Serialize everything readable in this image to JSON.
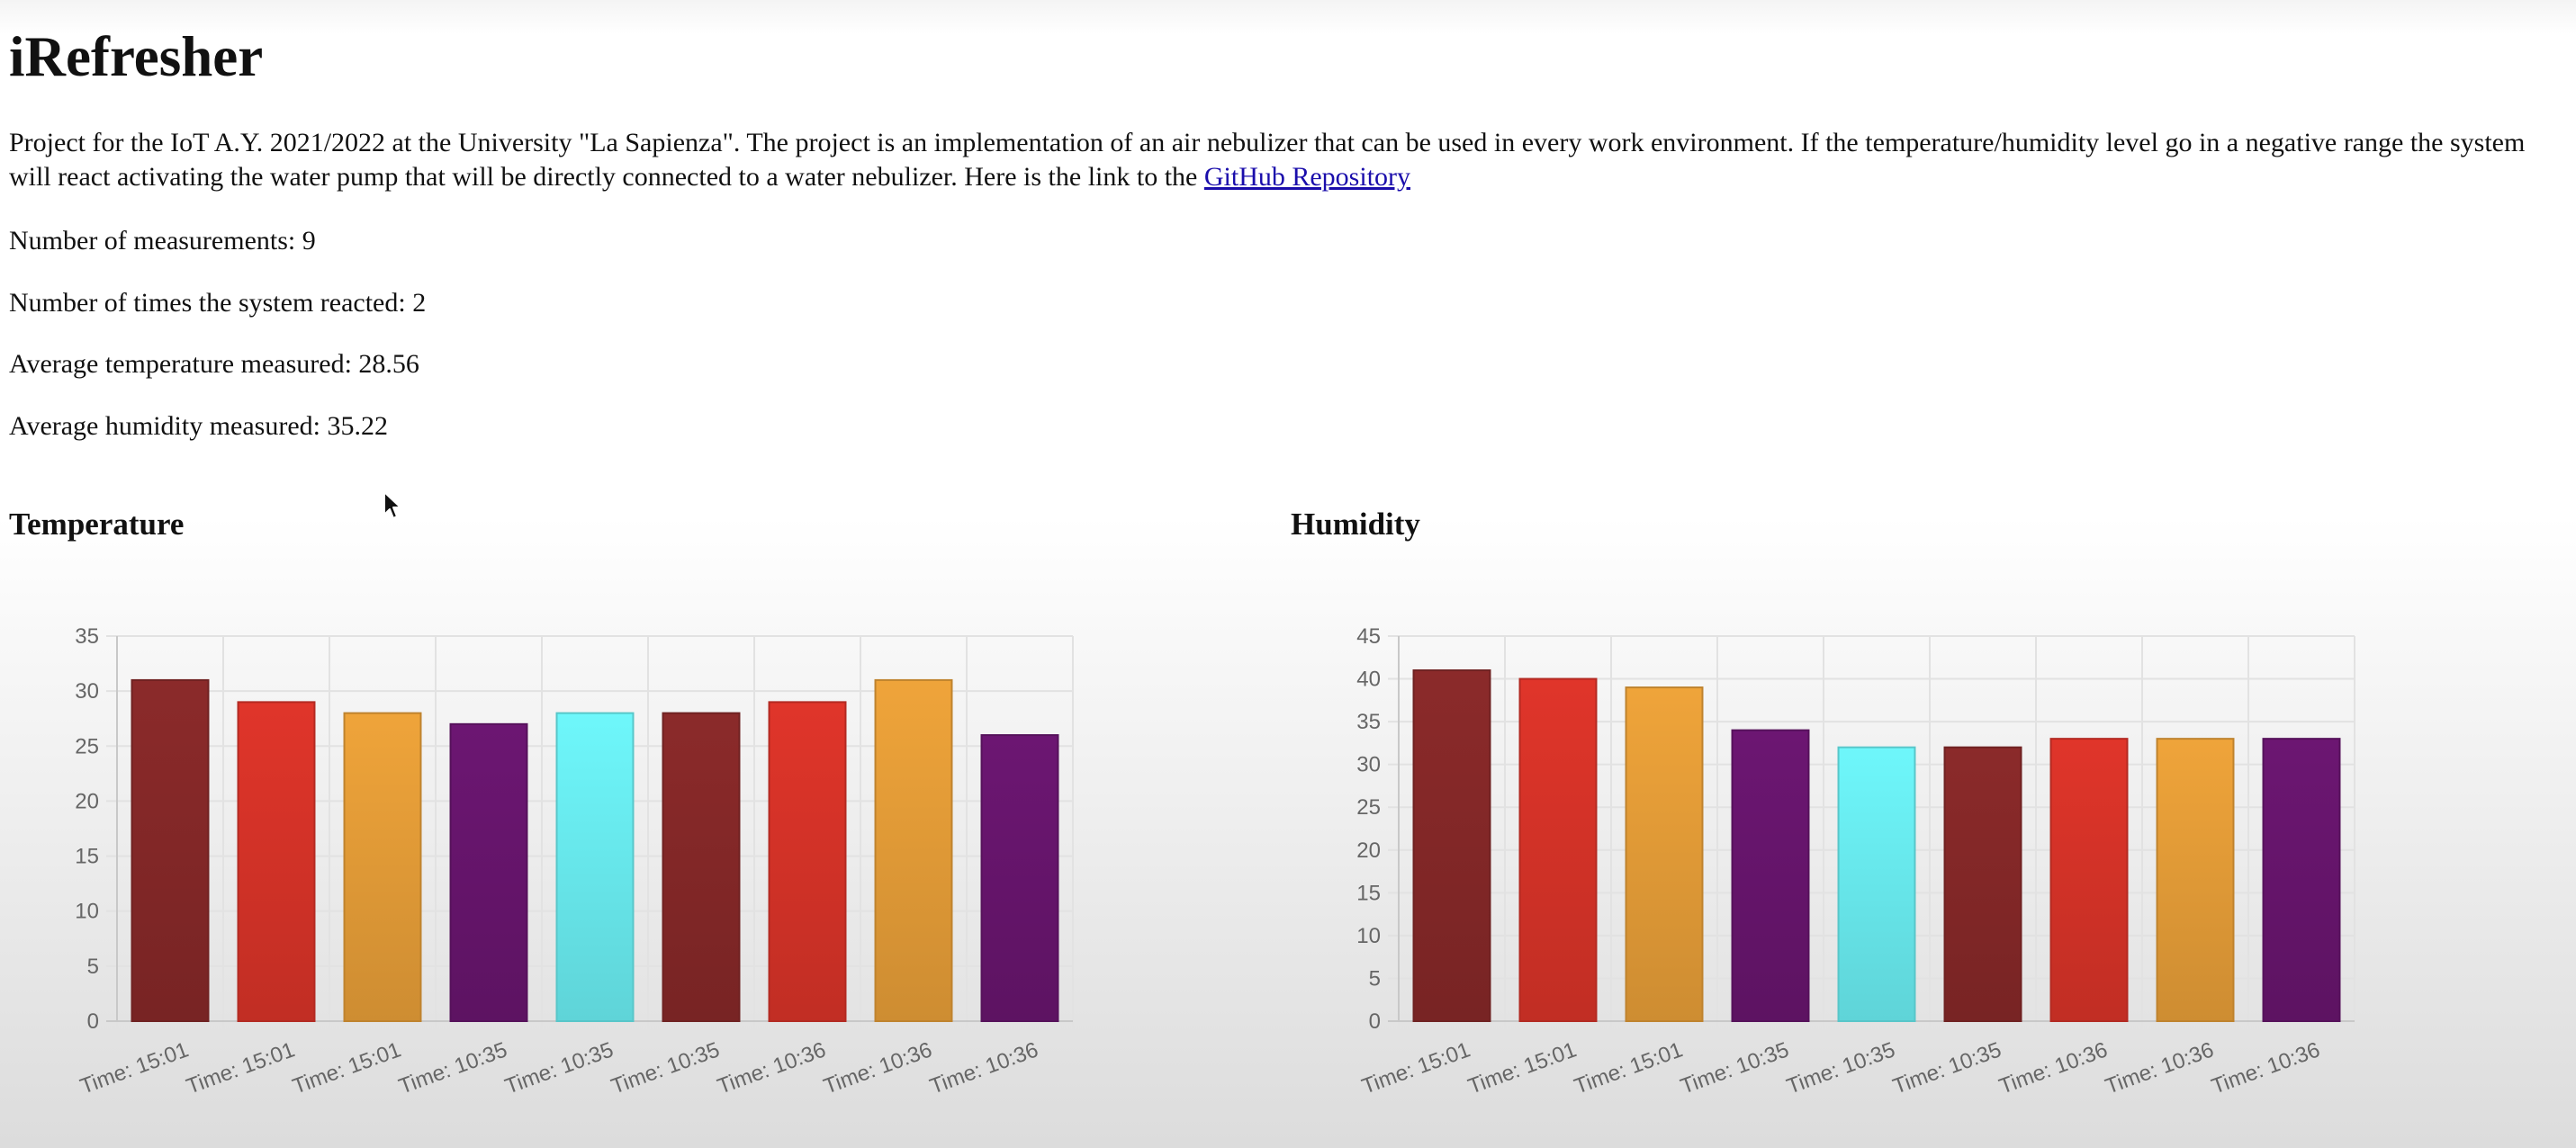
{
  "page": {
    "title": "iRefresher",
    "description_text": "Project for the IoT A.Y. 2021/2022 at the University \"La Sapienza\". The project is an implementation of an air nebulizer that can be used in every work environment. If the temperature/humidity level go in a negative range the system will react activating the water pump that will be directly connected to a water nebulizer. Here is the link to the",
    "github_link": "GitHub Repository"
  },
  "stats": {
    "measurements": "Number of measurements: 9",
    "reactions": "Number of times the system reacted: 2",
    "avg_temperature": "Average temperature measured: 28.56",
    "avg_humidity": "Average humidity measured: 35.22"
  },
  "sections": {
    "temperature_title": "Temperature",
    "humidity_title": "Humidity"
  },
  "chart_data": [
    {
      "type": "bar",
      "title": "Temperature",
      "categories": [
        "Time: 15:01",
        "Time: 15:01",
        "Time: 15:01",
        "Time: 10:35",
        "Time: 10:35",
        "Time: 10:35",
        "Time: 10:36",
        "Time: 10:36",
        "Time: 10:36"
      ],
      "values": [
        31,
        29,
        28,
        27,
        28,
        28,
        29,
        31,
        26
      ],
      "ylim": [
        0,
        35
      ],
      "yticks": [
        0,
        5,
        10,
        15,
        20,
        25,
        30,
        35
      ],
      "grid": true,
      "legend": false,
      "bar_colors": [
        "#8b2a2a",
        "#e0352a",
        "#efa43a",
        "#6c1672",
        "#6ef7fb",
        "#8b2a2a",
        "#e0352a",
        "#efa43a",
        "#6c1672"
      ]
    },
    {
      "type": "bar",
      "title": "Humidity",
      "categories": [
        "Time: 15:01",
        "Time: 15:01",
        "Time: 15:01",
        "Time: 10:35",
        "Time: 10:35",
        "Time: 10:35",
        "Time: 10:36",
        "Time: 10:36",
        "Time: 10:36"
      ],
      "values": [
        41,
        40,
        39,
        34,
        32,
        32,
        33,
        33,
        33
      ],
      "ylim": [
        0,
        45
      ],
      "yticks": [
        0,
        5,
        10,
        15,
        20,
        25,
        30,
        35,
        40,
        45
      ],
      "grid": true,
      "legend": false,
      "bar_colors": [
        "#8b2a2a",
        "#e0352a",
        "#efa43a",
        "#6c1672",
        "#6ef7fb",
        "#8b2a2a",
        "#e0352a",
        "#efa43a",
        "#6c1672"
      ]
    }
  ]
}
